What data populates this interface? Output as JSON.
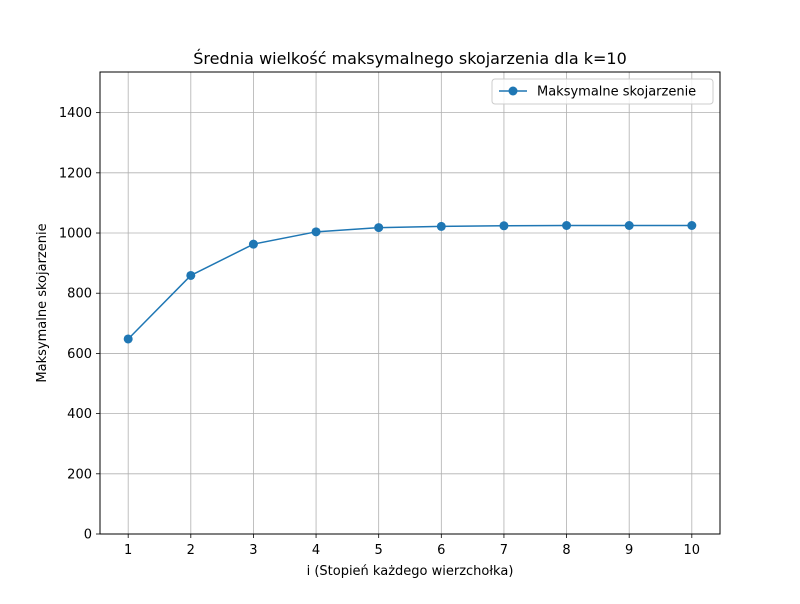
{
  "chart_data": {
    "type": "line",
    "title": "Średnia wielkość maksymalnego skojarzenia dla k=10",
    "xlabel": "i (Stopień każdego wierzchołka)",
    "ylabel": "Maksymalne skojarzenie",
    "x": [
      1,
      2,
      3,
      4,
      5,
      6,
      7,
      8,
      9,
      10
    ],
    "xticks": [
      "1",
      "2",
      "3",
      "4",
      "5",
      "6",
      "7",
      "8",
      "9",
      "10"
    ],
    "yticks": [
      "0",
      "200",
      "400",
      "600",
      "800",
      "1000",
      "1200",
      "1400"
    ],
    "xlim": [
      0.55,
      10.45
    ],
    "ylim": [
      0,
      1535
    ],
    "grid": true,
    "legend_position": "upper right",
    "series": [
      {
        "name": "Maksymalne skojarzenie",
        "color": "#1f77b4",
        "marker": "circle",
        "values": [
          648,
          859,
          963,
          1004,
          1018,
          1022,
          1024,
          1025,
          1025,
          1025
        ]
      }
    ]
  }
}
